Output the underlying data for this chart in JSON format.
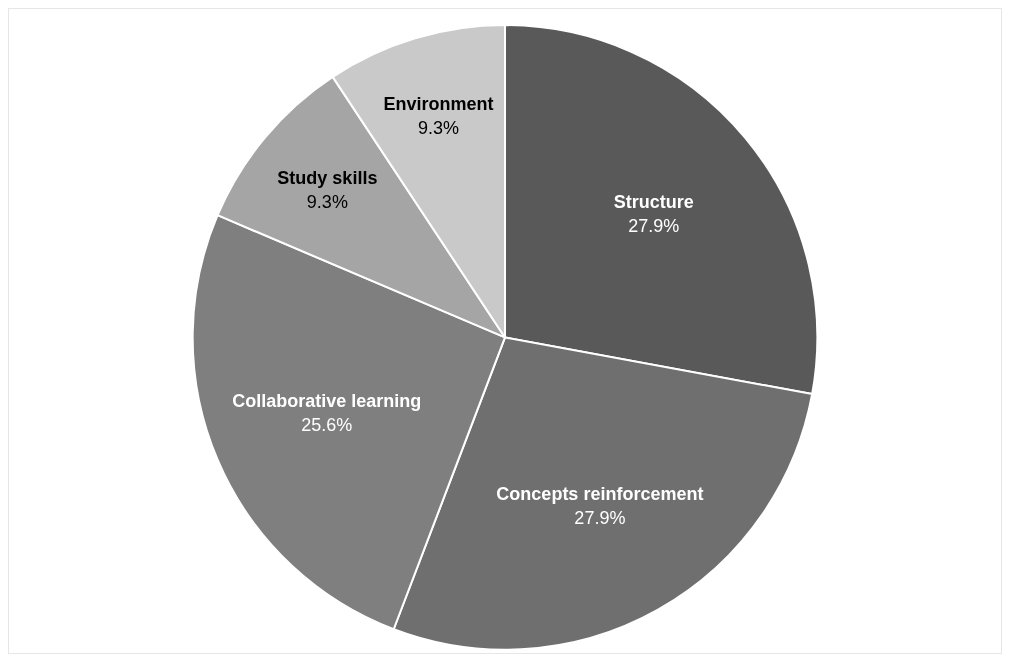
{
  "chart_data": {
    "type": "pie",
    "categories": [
      "Structure",
      "Concepts reinforcement",
      "Collaborative learning",
      "Study skills",
      "Environment"
    ],
    "values": [
      27.9,
      27.9,
      25.6,
      9.3,
      9.3
    ],
    "value_labels": [
      "27.9%",
      "27.9%",
      "25.6%",
      "9.3%",
      "9.3%"
    ],
    "colors": [
      "#595959",
      "#6f6f6f",
      "#7f7f7f",
      "#a5a5a5",
      "#c9c9c9"
    ],
    "legend": false
  }
}
